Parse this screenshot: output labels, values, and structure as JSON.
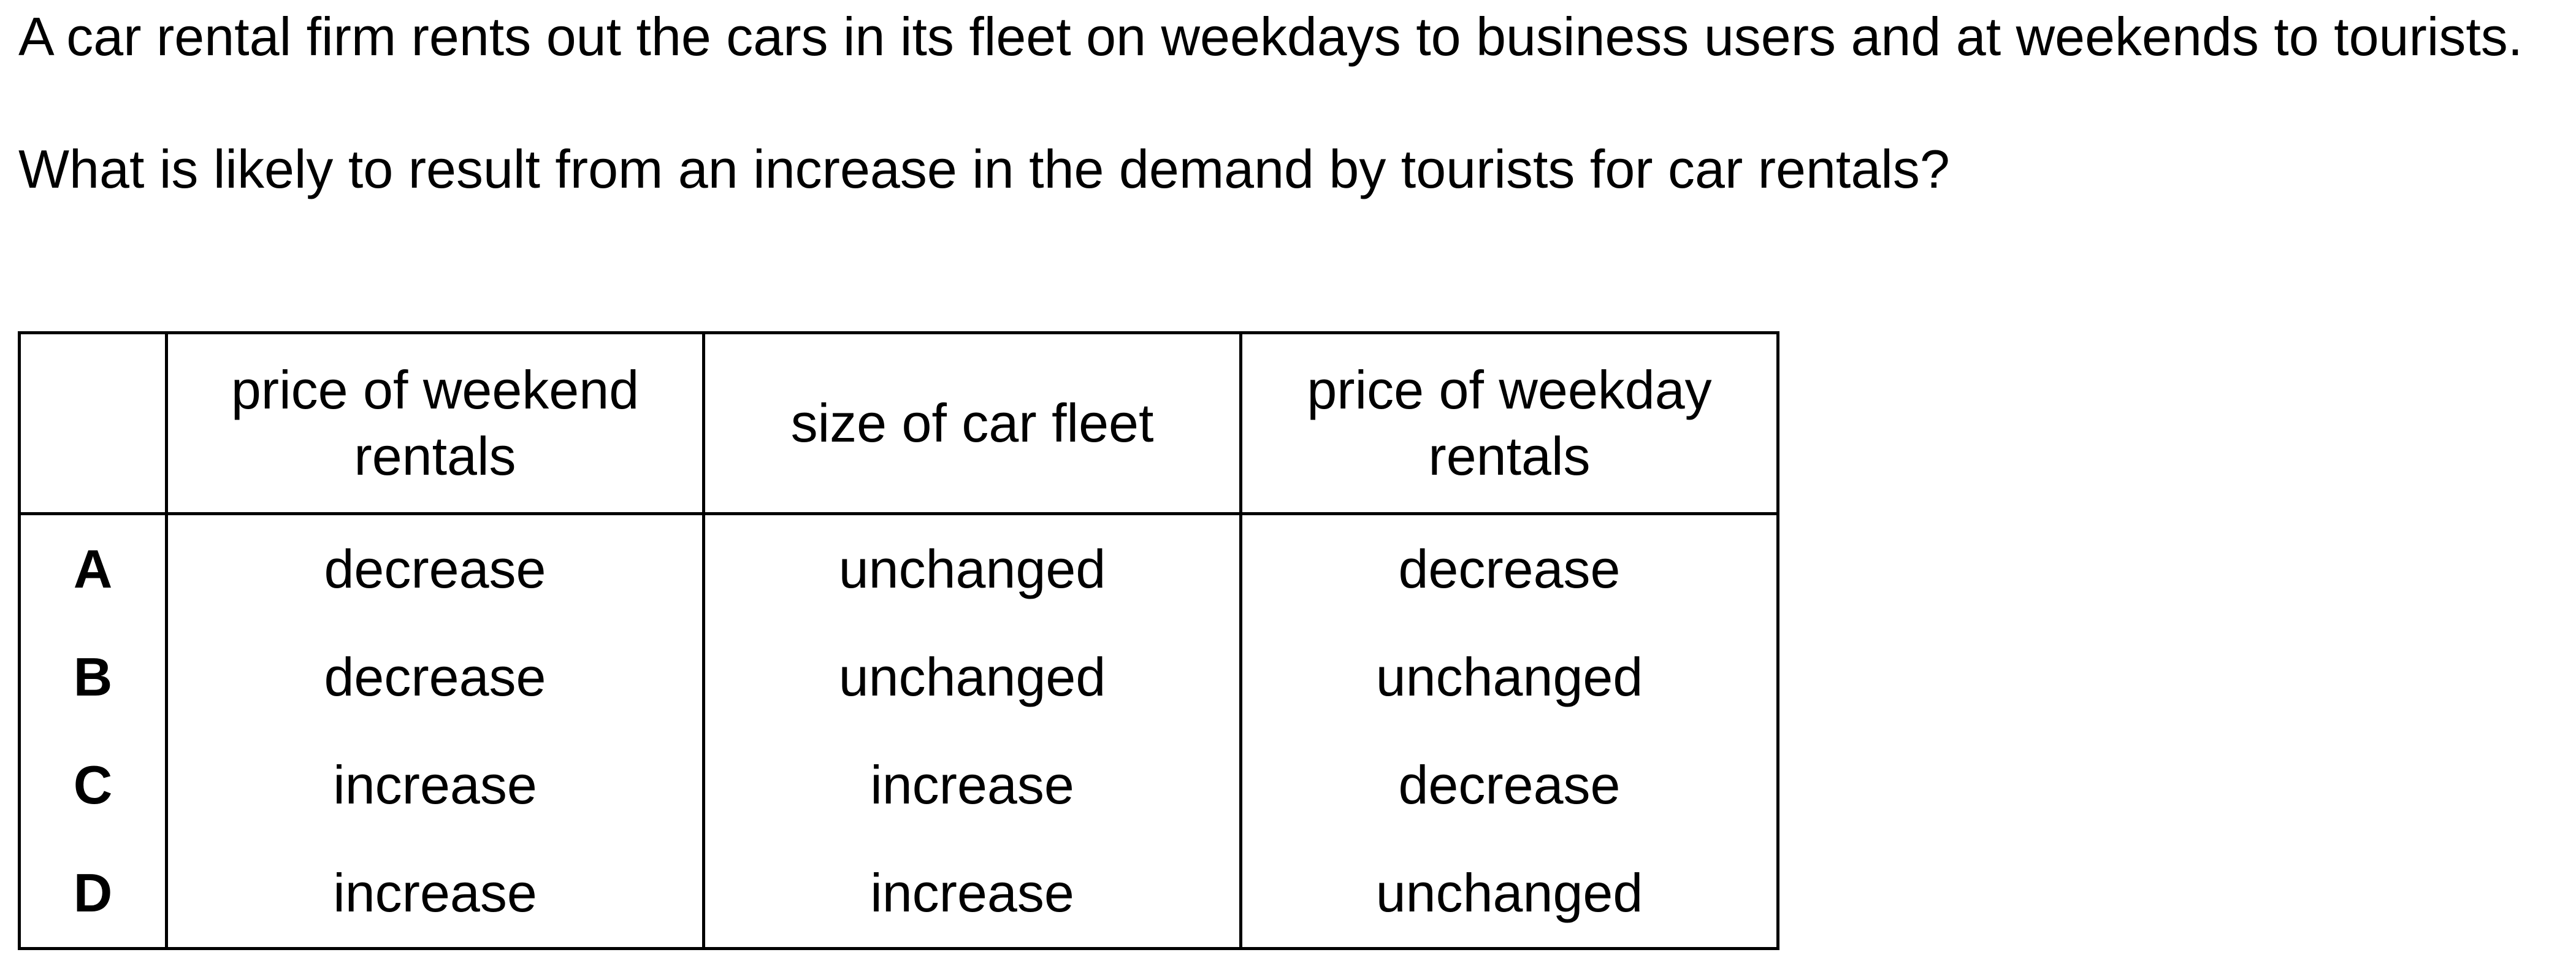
{
  "question": {
    "stem": "A car rental firm rents out the cars in its fleet on weekdays to business users and at weekends to tourists.",
    "ask": "What is likely to result from an increase in the demand by tourists for car rentals?"
  },
  "table": {
    "headers": [
      "",
      "price of weekend rentals",
      "size of car fleet",
      "price of weekday rentals"
    ],
    "rows": [
      [
        "A",
        "decrease",
        "unchanged",
        "decrease"
      ],
      [
        "B",
        "decrease",
        "unchanged",
        "unchanged"
      ],
      [
        "C",
        "increase",
        "increase",
        "decrease"
      ],
      [
        "D",
        "increase",
        "increase",
        "unchanged"
      ]
    ]
  }
}
